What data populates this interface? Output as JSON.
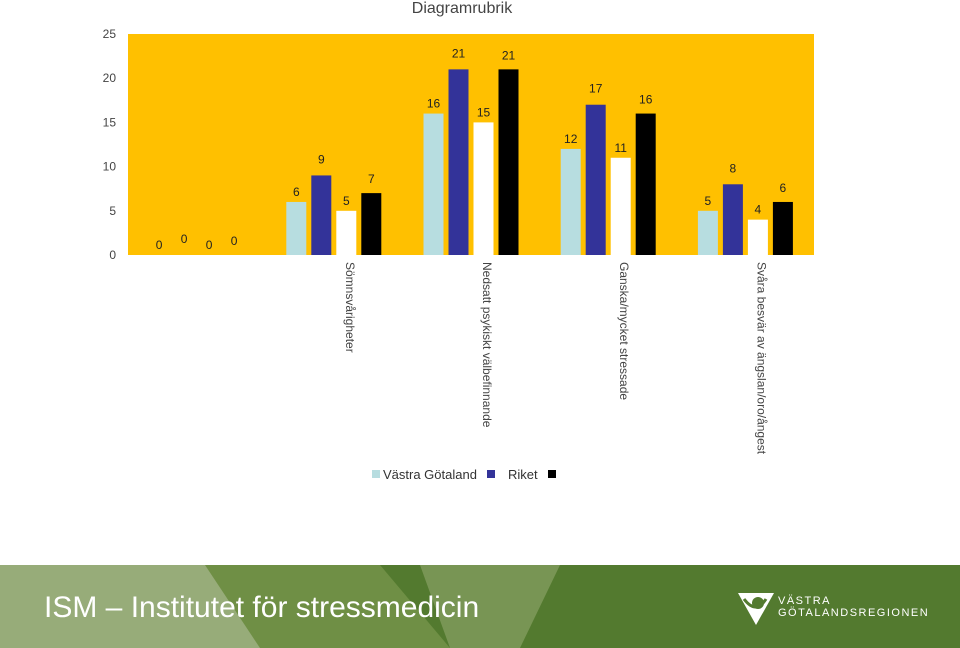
{
  "chart_data": {
    "type": "bar",
    "title": "Diagramrubrik",
    "categories": [
      "",
      "Sömnsvårigheter",
      "Nedsatt psykiskt välbefinnande",
      "Ganska/mycket stressade",
      "Svåra besvär av ängslan/oro/ångest"
    ],
    "series": [
      {
        "name": "Västra Götaland",
        "color": "#b7dde0",
        "values": [
          0,
          6,
          16,
          12,
          5
        ]
      },
      {
        "name": "",
        "color": "#333399",
        "values": [
          0,
          9,
          21,
          17,
          8
        ]
      },
      {
        "name": "Riket",
        "color": "#ffffff",
        "values": [
          0,
          5,
          15,
          11,
          4
        ]
      },
      {
        "name": "",
        "color": "#000000",
        "values": [
          0,
          7,
          21,
          16,
          6
        ]
      }
    ],
    "ylim": [
      0,
      25
    ],
    "yticks": [
      0,
      5,
      10,
      15,
      20,
      25
    ],
    "plot_background": "#ffc000",
    "grid": false,
    "legend_position": "bottom"
  },
  "footer": {
    "title": "ISM – Institutet för stressmedicin",
    "logo_line1": "VÄSTRA",
    "logo_line2": "GÖTALANDSREGIONEN",
    "background": "#537a2f"
  }
}
